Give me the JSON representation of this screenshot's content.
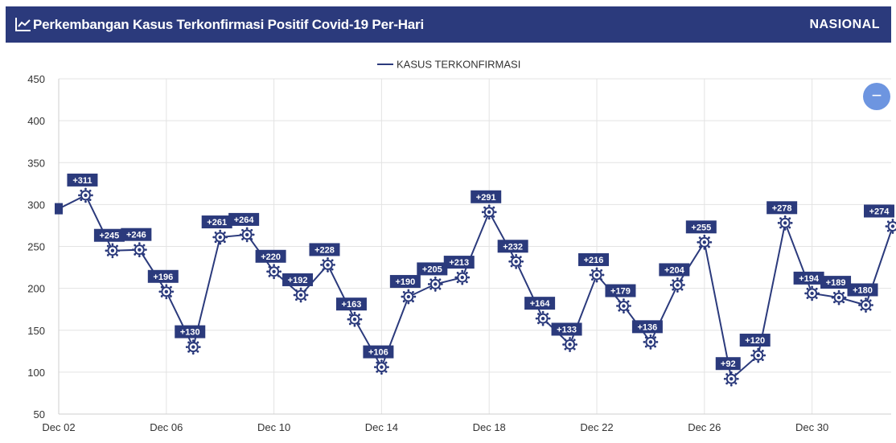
{
  "header": {
    "title": "Perkembangan Kasus Terkonfirmasi Positif Covid-19 Per-Hari",
    "region": "NASIONAL",
    "icon": "line-chart-icon"
  },
  "zoom_button": {
    "icon": "minus-icon",
    "label": "−"
  },
  "chart_data": {
    "type": "line",
    "legend": "KASUS TERKONFIRMASI",
    "legend_position": "top-center",
    "grid": true,
    "ylim": [
      50,
      450
    ],
    "yticks": [
      50,
      100,
      150,
      200,
      250,
      300,
      350,
      400,
      450
    ],
    "xticks": [
      "Dec 02",
      "Dec 06",
      "Dec 10",
      "Dec 14",
      "Dec 18",
      "Dec 22",
      "Dec 26",
      "Dec 30"
    ],
    "colors": {
      "line": "#2b3a7c",
      "label_bg": "#2b3a7c",
      "grid": "#e3e3e3"
    },
    "series": [
      {
        "values": [
          {
            "x": "Dec 02",
            "y": 295,
            "label": ""
          },
          {
            "x": "Dec 03",
            "y": 311,
            "label": "+311"
          },
          {
            "x": "Dec 04",
            "y": 245,
            "label": "+245"
          },
          {
            "x": "Dec 05",
            "y": 246,
            "label": "+246"
          },
          {
            "x": "Dec 06",
            "y": 196,
            "label": "+196"
          },
          {
            "x": "Dec 07",
            "y": 130,
            "label": "+130"
          },
          {
            "x": "Dec 08",
            "y": 261,
            "label": "+261"
          },
          {
            "x": "Dec 09",
            "y": 264,
            "label": "+264"
          },
          {
            "x": "Dec 10",
            "y": 220,
            "label": "+220"
          },
          {
            "x": "Dec 11",
            "y": 192,
            "label": "+192"
          },
          {
            "x": "Dec 12",
            "y": 228,
            "label": "+228"
          },
          {
            "x": "Dec 13",
            "y": 163,
            "label": "+163"
          },
          {
            "x": "Dec 14",
            "y": 106,
            "label": "+106"
          },
          {
            "x": "Dec 15",
            "y": 190,
            "label": "+190"
          },
          {
            "x": "Dec 16",
            "y": 205,
            "label": "+205"
          },
          {
            "x": "Dec 17",
            "y": 213,
            "label": "+213"
          },
          {
            "x": "Dec 18",
            "y": 291,
            "label": "+291"
          },
          {
            "x": "Dec 19",
            "y": 232,
            "label": "+232"
          },
          {
            "x": "Dec 20",
            "y": 164,
            "label": "+164"
          },
          {
            "x": "Dec 21",
            "y": 133,
            "label": "+133"
          },
          {
            "x": "Dec 22",
            "y": 216,
            "label": "+216"
          },
          {
            "x": "Dec 23",
            "y": 179,
            "label": "+179"
          },
          {
            "x": "Dec 24",
            "y": 136,
            "label": "+136"
          },
          {
            "x": "Dec 25",
            "y": 204,
            "label": "+204"
          },
          {
            "x": "Dec 26",
            "y": 255,
            "label": "+255"
          },
          {
            "x": "Dec 27",
            "y": 92,
            "label": "+92"
          },
          {
            "x": "Dec 28",
            "y": 120,
            "label": "+120"
          },
          {
            "x": "Dec 29",
            "y": 278,
            "label": "+278"
          },
          {
            "x": "Dec 30",
            "y": 194,
            "label": "+194"
          },
          {
            "x": "Dec 31",
            "y": 189,
            "label": "+189"
          },
          {
            "x": "Jan 01",
            "y": 180,
            "label": "+180"
          },
          {
            "x": "Jan 02",
            "y": 274,
            "label": "+274"
          }
        ]
      }
    ]
  }
}
